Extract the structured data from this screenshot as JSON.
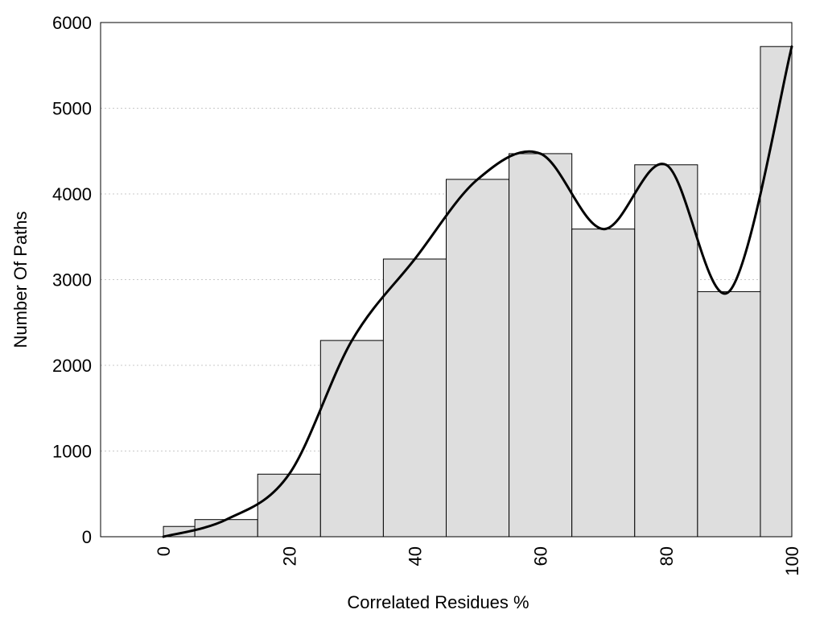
{
  "chart_data": {
    "type": "bar",
    "title": "",
    "xlabel": "Correlated Residues %",
    "ylabel": "Number Of Paths",
    "xlim": [
      -10,
      100
    ],
    "ylim": [
      0,
      6000
    ],
    "x_ticks": [
      0,
      20,
      40,
      60,
      80,
      100
    ],
    "y_ticks": [
      0,
      1000,
      2000,
      3000,
      4000,
      5000,
      6000
    ],
    "grid": "horizontal dotted",
    "legend": "none",
    "bar_color": "#dedede",
    "bins": [
      {
        "from": 0,
        "to": 5,
        "value": 120
      },
      {
        "from": 5,
        "to": 15,
        "value": 200
      },
      {
        "from": 15,
        "to": 25,
        "value": 730
      },
      {
        "from": 25,
        "to": 35,
        "value": 2290
      },
      {
        "from": 35,
        "to": 45,
        "value": 3240
      },
      {
        "from": 45,
        "to": 55,
        "value": 4170
      },
      {
        "from": 55,
        "to": 65,
        "value": 4470
      },
      {
        "from": 65,
        "to": 75,
        "value": 3590
      },
      {
        "from": 75,
        "to": 85,
        "value": 4340
      },
      {
        "from": 85,
        "to": 95,
        "value": 2860
      },
      {
        "from": 95,
        "to": 100,
        "value": 5720
      }
    ],
    "curve": {
      "x": [
        0,
        10,
        20,
        30,
        40,
        50,
        60,
        70,
        80,
        90,
        100
      ],
      "y": [
        0,
        200,
        730,
        2290,
        3240,
        4170,
        4470,
        3590,
        4340,
        2860,
        5720
      ]
    }
  }
}
